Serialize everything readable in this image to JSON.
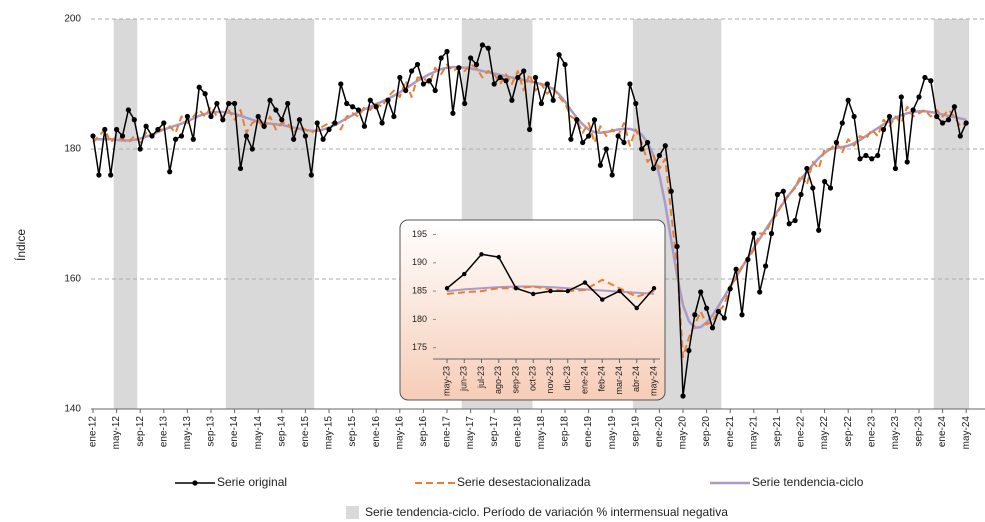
{
  "chart_data": [
    {
      "type": "line",
      "y_label": "Índice",
      "categories": [
        "ene-12",
        null,
        null,
        null,
        "may-12",
        null,
        null,
        null,
        "sep-12",
        null,
        null,
        null,
        "ene-13",
        null,
        null,
        null,
        "may-13",
        null,
        null,
        null,
        "sep-13",
        null,
        null,
        null,
        "ene-14",
        null,
        null,
        null,
        "may-14",
        null,
        null,
        null,
        "sep-14",
        null,
        null,
        null,
        "ene-15",
        null,
        null,
        null,
        "may-15",
        null,
        null,
        null,
        "sep-15",
        null,
        null,
        null,
        "ene-16",
        null,
        null,
        null,
        "may-16",
        null,
        null,
        null,
        "sep-16",
        null,
        null,
        null,
        "ene-17",
        null,
        null,
        null,
        "may-17",
        null,
        null,
        null,
        "sep-17",
        null,
        null,
        null,
        "ene-18",
        null,
        null,
        null,
        "may-18",
        null,
        null,
        null,
        "sep-18",
        null,
        null,
        null,
        "ene-19",
        null,
        null,
        null,
        "may-19",
        null,
        null,
        null,
        "sep-19",
        null,
        null,
        null,
        "ene-20",
        null,
        null,
        null,
        "may-20",
        null,
        null,
        null,
        "sep-20",
        null,
        null,
        null,
        "ene-21",
        null,
        null,
        null,
        "may-21",
        null,
        null,
        null,
        "sep-21",
        null,
        null,
        null,
        "ene-22",
        null,
        null,
        null,
        "may-22",
        null,
        null,
        null,
        "sep-22",
        null,
        null,
        null,
        "ene-23",
        null,
        null,
        null,
        "may-23",
        null,
        null,
        null,
        "sep-23",
        null,
        null,
        null,
        "ene-24",
        null,
        null,
        null,
        "may-24"
      ],
      "series": [
        {
          "name": "Serie original",
          "color": "#000000",
          "markers": true,
          "values": [
            182,
            176,
            183,
            176,
            183,
            182,
            186,
            184.5,
            180,
            183.5,
            182,
            183,
            184,
            176.5,
            181.5,
            182,
            185,
            181.5,
            189.5,
            188.5,
            185,
            187,
            184.5,
            187,
            187,
            177,
            182,
            180,
            185,
            183.5,
            187.5,
            186,
            184.5,
            187,
            181.5,
            184.5,
            182,
            176,
            184,
            181.5,
            183,
            184,
            190,
            187,
            186.5,
            186,
            183.5,
            187.5,
            186.5,
            184,
            187.5,
            185,
            191,
            189,
            192,
            193,
            190,
            190.5,
            189,
            194,
            195,
            185.5,
            192.5,
            187,
            194,
            193,
            196,
            195.5,
            190,
            191,
            190.5,
            187.5,
            191,
            192,
            183,
            191,
            187,
            190,
            187.5,
            194.5,
            193,
            181.5,
            184.5,
            181,
            182,
            184.5,
            177.5,
            180,
            176,
            182,
            181,
            190,
            187,
            180,
            181,
            177,
            179,
            180.5,
            173.5,
            165,
            142,
            149,
            154.5,
            158,
            155.5,
            152.5,
            155,
            154,
            158.5,
            161.5,
            154.5,
            163,
            167,
            158,
            162,
            167,
            173,
            173.5,
            168.5,
            169,
            173,
            177,
            174,
            167.5,
            175,
            174,
            181,
            184,
            187.5,
            185,
            178.5,
            179,
            178.5,
            179,
            183,
            185,
            177,
            188,
            178,
            186,
            188,
            191,
            190.5,
            185,
            184,
            184.5,
            186.5,
            182,
            184
          ]
        },
        {
          "name": "Serie desestacionalizada",
          "color": "#ed7d31",
          "dashed": true,
          "values": [
            181,
            182,
            183,
            181,
            182,
            181.5,
            181,
            182,
            181,
            182.5,
            182,
            183,
            183,
            183.5,
            182.5,
            185,
            184,
            185,
            186,
            185,
            186.5,
            185,
            185,
            186,
            184.5,
            186,
            182.5,
            184,
            184.5,
            183,
            185,
            183,
            184,
            184,
            182.5,
            183.5,
            183,
            182.5,
            183,
            183.5,
            184,
            184,
            183,
            185,
            185.5,
            185,
            186.5,
            186,
            187,
            186.5,
            188,
            189,
            188,
            190.5,
            188,
            191,
            191,
            190,
            192.5,
            191.5,
            193,
            192,
            192.5,
            192,
            193,
            192.5,
            191,
            192,
            191.5,
            190,
            191.5,
            190,
            192,
            189,
            191.5,
            189,
            190,
            188.5,
            189.5,
            188,
            187,
            185,
            184.5,
            182.5,
            184,
            181,
            183.5,
            182,
            183,
            182,
            184,
            180.5,
            183,
            181,
            178,
            179,
            177,
            178.5,
            170,
            162,
            148,
            151,
            153,
            155,
            153,
            153.5,
            155,
            156,
            159,
            160,
            162,
            163,
            164.5,
            167,
            167,
            169,
            170,
            172,
            173,
            174,
            176,
            174.5,
            178,
            177,
            180,
            180,
            181,
            179.5,
            181.5,
            180.5,
            182,
            181.5,
            183,
            182,
            184.5,
            183.5,
            185,
            184,
            186.5,
            185,
            185.5,
            186,
            185,
            186,
            185,
            186,
            185,
            183.5,
            184
          ]
        },
        {
          "name": "Serie tendencia-ciclo",
          "color": "#a99bc6",
          "width": 2.5,
          "values": [
            181.5,
            181.5,
            181.5,
            181.5,
            181.4,
            181.3,
            181.3,
            181.4,
            181.6,
            181.9,
            182.2,
            182.6,
            183,
            183.3,
            183.6,
            183.9,
            184.3,
            184.7,
            185.1,
            185.4,
            185.6,
            185.7,
            185.7,
            185.6,
            185.4,
            185.1,
            184.8,
            184.5,
            184.2,
            184,
            183.9,
            183.8,
            183.7,
            183.5,
            183.3,
            183.1,
            182.9,
            182.8,
            182.8,
            183,
            183.3,
            183.7,
            184.2,
            184.7,
            185.2,
            185.7,
            186.1,
            186.5,
            186.9,
            187.3,
            187.7,
            188.2,
            188.7,
            189.3,
            189.9,
            190.5,
            191,
            191.5,
            191.9,
            192.3,
            192.5,
            192.6,
            192.6,
            192.5,
            192.4,
            192.2,
            192,
            191.8,
            191.6,
            191.4,
            191.2,
            191,
            190.8,
            190.6,
            190.4,
            190.2,
            190,
            189.7,
            189.2,
            188.4,
            187.3,
            186,
            184.8,
            183.8,
            183,
            182.6,
            182.5,
            182.6,
            182.8,
            183,
            183.1,
            183.1,
            182.8,
            182.2,
            181,
            179,
            176,
            171.5,
            166,
            160.5,
            156,
            153.5,
            152.5,
            152.6,
            153.3,
            154.4,
            155.8,
            157.3,
            158.8,
            160.3,
            161.8,
            163.3,
            164.8,
            166.2,
            167.6,
            169,
            170.4,
            171.7,
            173,
            174.2,
            175.4,
            176.5,
            177.6,
            178.6,
            179.4,
            180,
            180.2,
            180.3,
            180.5,
            180.9,
            181.4,
            182,
            182.6,
            183.2,
            183.8,
            184.3,
            184.8,
            185.2,
            185.5,
            185.7,
            185.8,
            185.8,
            185.7,
            185.5,
            185.3,
            185.1,
            184.9,
            184.7,
            184.5
          ]
        }
      ],
      "shaded": [
        [
          4,
          7
        ],
        [
          23,
          37
        ],
        [
          63,
          74
        ],
        [
          92,
          106
        ],
        [
          143,
          148
        ]
      ],
      "shade_color": "#d9d9d9",
      "shade_label": "Serie tendencia-ciclo. Período de variación % intermensual negativa",
      "ylim": [
        140,
        200
      ],
      "yticks": [
        140,
        160,
        180,
        200
      ],
      "grid": true
    },
    {
      "type": "line",
      "categories": [
        "may-23",
        "jun-23",
        "jul-23",
        "ago-23",
        "sep-23",
        "oct-23",
        "nov-23",
        "dic-23",
        "ene-24",
        "feb-24",
        "mar-24",
        "abr-24",
        "may-24"
      ],
      "series": [
        {
          "color": "#000000",
          "markers": true,
          "values": [
            185.5,
            188,
            191.5,
            191,
            185.5,
            184.5,
            185,
            185,
            186.5,
            183.5,
            185,
            182,
            185.5
          ]
        },
        {
          "color": "#ed7d31",
          "dashed": true,
          "values": [
            184.5,
            184.8,
            185,
            185.5,
            185.5,
            185.8,
            185.3,
            185,
            185.2,
            187,
            185.5,
            184,
            185
          ]
        },
        {
          "color": "#a99bc6",
          "width": 2,
          "values": [
            185,
            185.3,
            185.5,
            185.7,
            185.8,
            185.8,
            185.7,
            185.5,
            185.3,
            185.1,
            184.9,
            184.7,
            184.5
          ]
        }
      ],
      "ylim": [
        173,
        196.5
      ],
      "yticks": [
        175,
        180,
        185,
        190,
        195
      ],
      "grid": false
    }
  ]
}
